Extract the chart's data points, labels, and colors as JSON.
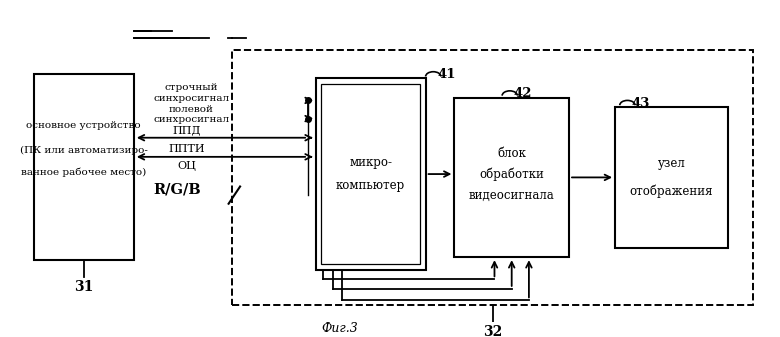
{
  "bg_color": "#ffffff",
  "fig_width": 7.8,
  "fig_height": 3.37,
  "dpi": 100,
  "caption": "Фиг.3",
  "label_31": "31",
  "label_32": "32",
  "label_41": "41",
  "label_42": "42",
  "label_43": "43",
  "box_main_text_1": "основное устройство",
  "box_main_text_2": "(ПК или автоматизиро-",
  "box_main_text_3": "ванное рабочее место)",
  "box_micro_text_1": "микро-",
  "box_micro_text_2": "компьютер",
  "box_block_text_1": "блок",
  "box_block_text_2": "обработки",
  "box_block_text_3": "видеосигнала",
  "box_node_text_1": "узел",
  "box_node_text_2": "отображения",
  "signal_str_1": "строчный",
  "signal_str_2": "синхросигнал",
  "signal_pol_1": "полевой",
  "signal_pol_2": "синхросигнал",
  "signal_ppd": "ППД",
  "signal_ppti": "ППТИ",
  "signal_oc": "ОЦ",
  "signal_rgb": "R/G/B"
}
